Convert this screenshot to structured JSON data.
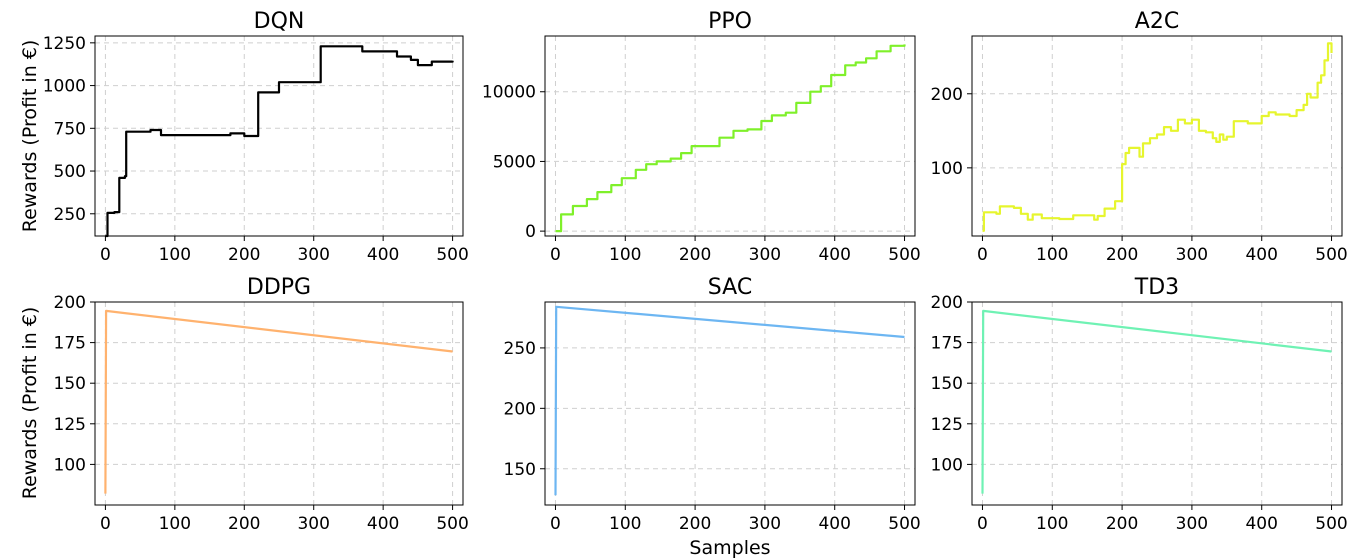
{
  "figure": {
    "xlabel": "Samples",
    "ylabel": "Rewards (Profit in €)"
  },
  "chart_data": [
    {
      "type": "line",
      "title": "DQN",
      "color": "#000000",
      "xlim": [
        -15,
        515
      ],
      "ylim": [
        120,
        1290
      ],
      "xticks": [
        0,
        100,
        200,
        300,
        400,
        500
      ],
      "yticks": [
        250,
        500,
        750,
        1000,
        1250
      ],
      "grid": true,
      "step": true,
      "series": [
        {
          "x": [
            0,
            3,
            13,
            20,
            28,
            30,
            65,
            80,
            180,
            200,
            220,
            250,
            310,
            370,
            420,
            440,
            450,
            470,
            500
          ],
          "y": [
            120,
            255,
            260,
            460,
            470,
            730,
            740,
            710,
            720,
            705,
            960,
            1020,
            1230,
            1200,
            1170,
            1150,
            1120,
            1140,
            1145
          ]
        }
      ]
    },
    {
      "type": "line",
      "title": "PPO",
      "color": "#7ff02a",
      "xlim": [
        -15,
        515
      ],
      "ylim": [
        -350,
        14000
      ],
      "xticks": [
        0,
        100,
        200,
        300,
        400,
        500
      ],
      "yticks": [
        0,
        5000,
        10000
      ],
      "grid": true,
      "step": true,
      "series": [
        {
          "x": [
            0,
            8,
            25,
            45,
            60,
            80,
            95,
            115,
            130,
            145,
            165,
            180,
            195,
            210,
            235,
            255,
            275,
            295,
            310,
            330,
            345,
            365,
            380,
            395,
            415,
            430,
            445,
            460,
            480,
            500
          ],
          "y": [
            0,
            1200,
            1800,
            2300,
            2800,
            3300,
            3800,
            4400,
            4800,
            5000,
            5200,
            5600,
            6100,
            6100,
            6700,
            7200,
            7300,
            7900,
            8300,
            8500,
            9200,
            10000,
            10400,
            11200,
            11900,
            12100,
            12400,
            12900,
            13300,
            13400
          ]
        }
      ]
    },
    {
      "type": "line",
      "title": "A2C",
      "color": "#e6f52e",
      "xlim": [
        -15,
        515
      ],
      "ylim": [
        8,
        278
      ],
      "xticks": [
        0,
        100,
        200,
        300,
        400,
        500
      ],
      "yticks": [
        100,
        200
      ],
      "grid": true,
      "step": true,
      "series": [
        {
          "x": [
            0,
            2,
            20,
            25,
            45,
            55,
            65,
            72,
            85,
            110,
            130,
            160,
            165,
            175,
            190,
            200,
            205,
            210,
            225,
            230,
            240,
            250,
            260,
            270,
            280,
            290,
            300,
            310,
            320,
            330,
            335,
            340,
            345,
            350,
            360,
            380,
            400,
            410,
            420,
            440,
            450,
            460,
            465,
            470,
            480,
            485,
            490,
            495,
            500
          ],
          "y": [
            15,
            40,
            38,
            48,
            46,
            38,
            30,
            37,
            32,
            31,
            36,
            30,
            35,
            45,
            55,
            105,
            120,
            127,
            115,
            133,
            140,
            145,
            155,
            150,
            165,
            160,
            165,
            150,
            148,
            140,
            135,
            145,
            138,
            142,
            163,
            160,
            170,
            175,
            172,
            170,
            178,
            185,
            200,
            195,
            215,
            225,
            245,
            268,
            255
          ]
        }
      ]
    },
    {
      "type": "line",
      "title": "DDPG",
      "color": "#ffb26e",
      "xlim": [
        -15,
        515
      ],
      "ylim": [
        75,
        200
      ],
      "xticks": [
        0,
        100,
        200,
        300,
        400,
        500
      ],
      "yticks": [
        100,
        125,
        150,
        175,
        200
      ],
      "grid": true,
      "step": false,
      "series": [
        {
          "x": [
            0,
            1,
            500
          ],
          "y": [
            82,
            194.5,
            169.5
          ]
        }
      ]
    },
    {
      "type": "line",
      "title": "SAC",
      "color": "#6db6f2",
      "xlim": [
        -15,
        515
      ],
      "ylim": [
        120,
        288
      ],
      "xticks": [
        0,
        100,
        200,
        300,
        400,
        500
      ],
      "yticks": [
        150,
        200,
        250
      ],
      "grid": true,
      "step": false,
      "series": [
        {
          "x": [
            0,
            1,
            500
          ],
          "y": [
            128,
            284,
            259
          ]
        }
      ]
    },
    {
      "type": "line",
      "title": "TD3",
      "color": "#6ff2b4",
      "xlim": [
        -15,
        515
      ],
      "ylim": [
        75,
        200
      ],
      "xticks": [
        0,
        100,
        200,
        300,
        400,
        500
      ],
      "yticks": [
        100,
        125,
        150,
        175,
        200
      ],
      "grid": true,
      "step": false,
      "series": [
        {
          "x": [
            0,
            1,
            500
          ],
          "y": [
            82,
            194.5,
            169.5
          ]
        }
      ]
    }
  ]
}
